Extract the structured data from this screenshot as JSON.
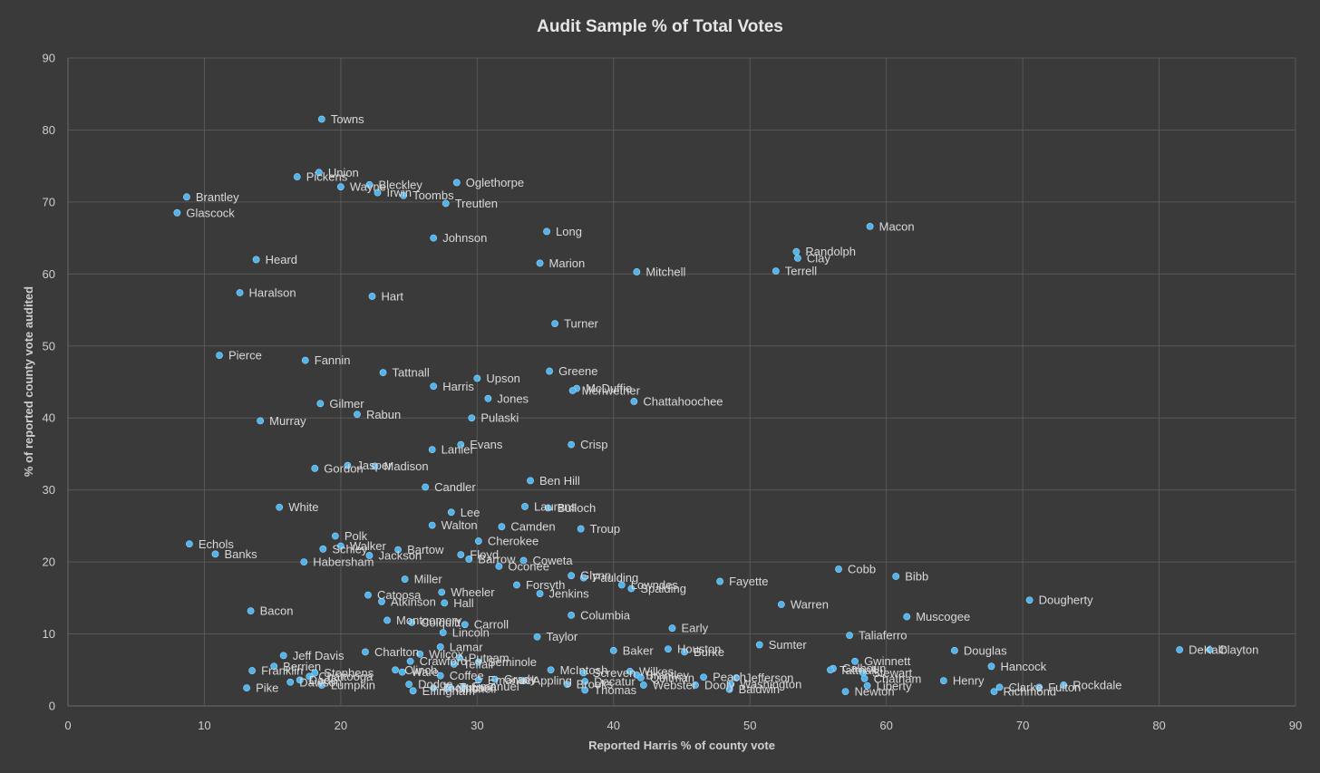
{
  "chart_data": {
    "type": "scatter",
    "title": "Audit Sample % of Total Votes",
    "xlabel": "Reported Harris % of county vote",
    "ylabel": "% of reported county vote audited",
    "xlim": [
      0,
      90
    ],
    "ylim": [
      0,
      90
    ],
    "xticks": [
      0,
      10,
      20,
      30,
      40,
      50,
      60,
      70,
      80,
      90
    ],
    "yticks": [
      0,
      10,
      20,
      30,
      40,
      50,
      60,
      70,
      80,
      90
    ],
    "grid": true,
    "legend": "none",
    "marker_color": "#4fb3ec",
    "points": [
      {
        "label": "Towns",
        "x": 18.6,
        "y": 81.5
      },
      {
        "label": "Union",
        "x": 18.4,
        "y": 74.1
      },
      {
        "label": "Pickens",
        "x": 16.8,
        "y": 73.5
      },
      {
        "label": "Wayne",
        "x": 20.0,
        "y": 72.1
      },
      {
        "label": "Bleckley",
        "x": 22.1,
        "y": 72.4
      },
      {
        "label": "Irwin",
        "x": 22.7,
        "y": 71.3
      },
      {
        "label": "Oglethorpe",
        "x": 28.5,
        "y": 72.7
      },
      {
        "label": "Toombs",
        "x": 24.6,
        "y": 70.9
      },
      {
        "label": "Treutlen",
        "x": 27.7,
        "y": 69.8
      },
      {
        "label": "Brantley",
        "x": 8.7,
        "y": 70.7
      },
      {
        "label": "Glascock",
        "x": 8.0,
        "y": 68.5
      },
      {
        "label": "Johnson",
        "x": 26.8,
        "y": 65.0
      },
      {
        "label": "Long",
        "x": 35.1,
        "y": 65.9
      },
      {
        "label": "Macon",
        "x": 58.8,
        "y": 66.6
      },
      {
        "label": "Randolph",
        "x": 53.4,
        "y": 63.1
      },
      {
        "label": "Clay",
        "x": 53.5,
        "y": 62.2
      },
      {
        "label": "Terrell",
        "x": 51.9,
        "y": 60.4
      },
      {
        "label": "Heard",
        "x": 13.8,
        "y": 62.0
      },
      {
        "label": "Marion",
        "x": 34.6,
        "y": 61.5
      },
      {
        "label": "Mitchell",
        "x": 41.7,
        "y": 60.3
      },
      {
        "label": "Haralson",
        "x": 12.6,
        "y": 57.4
      },
      {
        "label": "Hart",
        "x": 22.3,
        "y": 56.9
      },
      {
        "label": "Turner",
        "x": 35.7,
        "y": 53.1
      },
      {
        "label": "Pierce",
        "x": 11.1,
        "y": 48.7
      },
      {
        "label": "Fannin",
        "x": 17.4,
        "y": 48.0
      },
      {
        "label": "Tattnall",
        "x": 23.1,
        "y": 46.3
      },
      {
        "label": "Greene",
        "x": 35.3,
        "y": 46.5
      },
      {
        "label": "Upson",
        "x": 30.0,
        "y": 45.5
      },
      {
        "label": "Harris",
        "x": 26.8,
        "y": 44.4
      },
      {
        "label": "McDuffie",
        "x": 37.3,
        "y": 44.1
      },
      {
        "label": "Meriwether",
        "x": 37.0,
        "y": 43.8
      },
      {
        "label": "Jones",
        "x": 30.8,
        "y": 42.7
      },
      {
        "label": "Chattahoochee",
        "x": 41.5,
        "y": 42.3
      },
      {
        "label": "Gilmer",
        "x": 18.5,
        "y": 42.0
      },
      {
        "label": "Rabun",
        "x": 21.2,
        "y": 40.5
      },
      {
        "label": "Pulaski",
        "x": 29.6,
        "y": 40.0
      },
      {
        "label": "Murray",
        "x": 14.1,
        "y": 39.6
      },
      {
        "label": "Evans",
        "x": 28.8,
        "y": 36.3
      },
      {
        "label": "Crisp",
        "x": 36.9,
        "y": 36.3
      },
      {
        "label": "Lanier",
        "x": 26.7,
        "y": 35.6
      },
      {
        "label": "Jasper",
        "x": 20.5,
        "y": 33.4
      },
      {
        "label": "Madison",
        "x": 22.5,
        "y": 33.3
      },
      {
        "label": "Gordon",
        "x": 18.1,
        "y": 33.0
      },
      {
        "label": "Ben Hill",
        "x": 33.9,
        "y": 31.3
      },
      {
        "label": "Candler",
        "x": 26.2,
        "y": 30.4
      },
      {
        "label": "White",
        "x": 15.5,
        "y": 27.6
      },
      {
        "label": "Laurens",
        "x": 33.5,
        "y": 27.7
      },
      {
        "label": "Bulloch",
        "x": 35.2,
        "y": 27.5
      },
      {
        "label": "Lee",
        "x": 28.1,
        "y": 26.9
      },
      {
        "label": "Walton",
        "x": 26.7,
        "y": 25.1
      },
      {
        "label": "Camden",
        "x": 31.8,
        "y": 24.9
      },
      {
        "label": "Troup",
        "x": 37.6,
        "y": 24.6
      },
      {
        "label": "Cherokee",
        "x": 30.1,
        "y": 22.9
      },
      {
        "label": "Echols",
        "x": 8.9,
        "y": 22.5
      },
      {
        "label": "Polk",
        "x": 19.6,
        "y": 23.6
      },
      {
        "label": "Walker",
        "x": 20.0,
        "y": 22.2
      },
      {
        "label": "Schley",
        "x": 18.7,
        "y": 21.8
      },
      {
        "label": "Bartow",
        "x": 24.2,
        "y": 21.7
      },
      {
        "label": "Banks",
        "x": 10.8,
        "y": 21.1
      },
      {
        "label": "Jackson",
        "x": 22.1,
        "y": 20.9
      },
      {
        "label": "Floyd",
        "x": 28.8,
        "y": 21.0
      },
      {
        "label": "Barrow",
        "x": 29.4,
        "y": 20.4
      },
      {
        "label": "Coweta",
        "x": 33.4,
        "y": 20.2
      },
      {
        "label": "Habersham",
        "x": 17.3,
        "y": 20.0
      },
      {
        "label": "Oconee",
        "x": 31.6,
        "y": 19.4
      },
      {
        "label": "Cobb",
        "x": 56.5,
        "y": 19.0
      },
      {
        "label": "Bibb",
        "x": 60.7,
        "y": 18.0
      },
      {
        "label": "Glynn",
        "x": 36.9,
        "y": 18.1
      },
      {
        "label": "Paulding",
        "x": 37.8,
        "y": 17.8
      },
      {
        "label": "Miller",
        "x": 24.7,
        "y": 17.6
      },
      {
        "label": "Fayette",
        "x": 47.8,
        "y": 17.3
      },
      {
        "label": "Lowndes",
        "x": 40.6,
        "y": 16.8
      },
      {
        "label": "Spalding",
        "x": 41.3,
        "y": 16.3
      },
      {
        "label": "Forsyth",
        "x": 32.9,
        "y": 16.8
      },
      {
        "label": "Wheeler",
        "x": 27.4,
        "y": 15.8
      },
      {
        "label": "Jenkins",
        "x": 34.6,
        "y": 15.6
      },
      {
        "label": "Catoosa",
        "x": 22.0,
        "y": 15.4
      },
      {
        "label": "Atkinson",
        "x": 23.0,
        "y": 14.5
      },
      {
        "label": "Hall",
        "x": 27.6,
        "y": 14.3
      },
      {
        "label": "Warren",
        "x": 52.3,
        "y": 14.1
      },
      {
        "label": "Dougherty",
        "x": 70.5,
        "y": 14.7
      },
      {
        "label": "Bacon",
        "x": 13.4,
        "y": 13.2
      },
      {
        "label": "Columbia",
        "x": 36.9,
        "y": 12.6
      },
      {
        "label": "Muscogee",
        "x": 61.5,
        "y": 12.4
      },
      {
        "label": "Montgomery",
        "x": 23.4,
        "y": 11.9
      },
      {
        "label": "Colquitt",
        "x": 25.2,
        "y": 11.6
      },
      {
        "label": "Carroll",
        "x": 29.1,
        "y": 11.3
      },
      {
        "label": "Early",
        "x": 44.3,
        "y": 10.8
      },
      {
        "label": "Lincoln",
        "x": 27.5,
        "y": 10.2
      },
      {
        "label": "Taliaferro",
        "x": 57.3,
        "y": 9.8
      },
      {
        "label": "Taylor",
        "x": 34.4,
        "y": 9.6
      },
      {
        "label": "Sumter",
        "x": 50.7,
        "y": 8.5
      },
      {
        "label": "Lamar",
        "x": 27.3,
        "y": 8.2
      },
      {
        "label": "Houston",
        "x": 44.0,
        "y": 7.9
      },
      {
        "label": "DeKalb",
        "x": 81.5,
        "y": 7.8
      },
      {
        "label": "Clayton",
        "x": 83.7,
        "y": 7.8
      },
      {
        "label": "Baker",
        "x": 40.0,
        "y": 7.7
      },
      {
        "label": "Douglas",
        "x": 65.0,
        "y": 7.7
      },
      {
        "label": "Burke",
        "x": 45.2,
        "y": 7.5
      },
      {
        "label": "Charlton",
        "x": 21.8,
        "y": 7.5
      },
      {
        "label": "Wilcox",
        "x": 25.8,
        "y": 7.2
      },
      {
        "label": "Jeff Davis",
        "x": 15.8,
        "y": 7.0
      },
      {
        "label": "Putnam",
        "x": 28.7,
        "y": 6.7
      },
      {
        "label": "Crawford",
        "x": 25.1,
        "y": 6.2
      },
      {
        "label": "Seminole",
        "x": 30.1,
        "y": 6.1
      },
      {
        "label": "Gwinnett",
        "x": 57.7,
        "y": 6.2
      },
      {
        "label": "Telfair",
        "x": 28.3,
        "y": 5.8
      },
      {
        "label": "Hancock",
        "x": 67.7,
        "y": 5.5
      },
      {
        "label": "Berrien",
        "x": 15.1,
        "y": 5.5
      },
      {
        "label": "Calhoun",
        "x": 56.1,
        "y": 5.2
      },
      {
        "label": "Tattnall",
        "x": 55.9,
        "y": 5.0
      },
      {
        "label": "Franklin",
        "x": 13.5,
        "y": 4.9
      },
      {
        "label": "Stewart",
        "x": 58.3,
        "y": 4.6
      },
      {
        "label": "Stephens",
        "x": 18.1,
        "y": 4.6
      },
      {
        "label": "Wilkes",
        "x": 41.2,
        "y": 4.8
      },
      {
        "label": "McIntosh",
        "x": 35.4,
        "y": 5.0
      },
      {
        "label": "Screven",
        "x": 37.8,
        "y": 4.6
      },
      {
        "label": "Ware",
        "x": 24.5,
        "y": 4.7
      },
      {
        "label": "Clinch",
        "x": 24.0,
        "y": 5.0
      },
      {
        "label": "Chattooga",
        "x": 17.7,
        "y": 4.1
      },
      {
        "label": "Coffee",
        "x": 27.3,
        "y": 4.2
      },
      {
        "label": "Brantley",
        "x": 41.7,
        "y": 4.3
      },
      {
        "label": "Quitman",
        "x": 42.0,
        "y": 3.9
      },
      {
        "label": "Chatham",
        "x": 58.4,
        "y": 3.8
      },
      {
        "label": "Jefferson",
        "x": 49.0,
        "y": 3.9
      },
      {
        "label": "Peach",
        "x": 46.6,
        "y": 4.0
      },
      {
        "label": "Grady",
        "x": 31.3,
        "y": 3.7
      },
      {
        "label": "Emanuel",
        "x": 30.1,
        "y": 3.6
      },
      {
        "label": "Dade",
        "x": 17.0,
        "y": 3.6
      },
      {
        "label": "Decatur",
        "x": 37.9,
        "y": 3.4
      },
      {
        "label": "Henry",
        "x": 64.2,
        "y": 3.5
      },
      {
        "label": "Dawson",
        "x": 16.3,
        "y": 3.3
      },
      {
        "label": "Appling",
        "x": 33.4,
        "y": 3.5
      },
      {
        "label": "Lumpkin",
        "x": 18.6,
        "y": 2.9
      },
      {
        "label": "Dodge",
        "x": 25.0,
        "y": 3.0
      },
      {
        "label": "Washington",
        "x": 48.6,
        "y": 3.0
      },
      {
        "label": "Brooks",
        "x": 36.6,
        "y": 3.0
      },
      {
        "label": "Webster",
        "x": 42.2,
        "y": 2.9
      },
      {
        "label": "Dooly",
        "x": 46.0,
        "y": 2.9
      },
      {
        "label": "Liberty",
        "x": 58.6,
        "y": 2.8
      },
      {
        "label": "Clarke",
        "x": 68.3,
        "y": 2.6
      },
      {
        "label": "Fulton",
        "x": 71.2,
        "y": 2.6
      },
      {
        "label": "Rockdale",
        "x": 73.0,
        "y": 2.9
      },
      {
        "label": "Pike",
        "x": 13.1,
        "y": 2.5
      },
      {
        "label": "Turner",
        "x": 28.0,
        "y": 2.6
      },
      {
        "label": "Mitchell",
        "x": 27.8,
        "y": 2.4
      },
      {
        "label": "Emanuel",
        "x": 29.0,
        "y": 2.7
      },
      {
        "label": "Toombs",
        "x": 26.8,
        "y": 2.5
      },
      {
        "label": "Baldwin",
        "x": 48.5,
        "y": 2.3
      },
      {
        "label": "Effingham",
        "x": 25.3,
        "y": 2.1
      },
      {
        "label": "Thomas",
        "x": 37.9,
        "y": 2.2
      },
      {
        "label": "Newton",
        "x": 57.0,
        "y": 2.0
      },
      {
        "label": "Richmond",
        "x": 67.9,
        "y": 2.0
      }
    ]
  }
}
